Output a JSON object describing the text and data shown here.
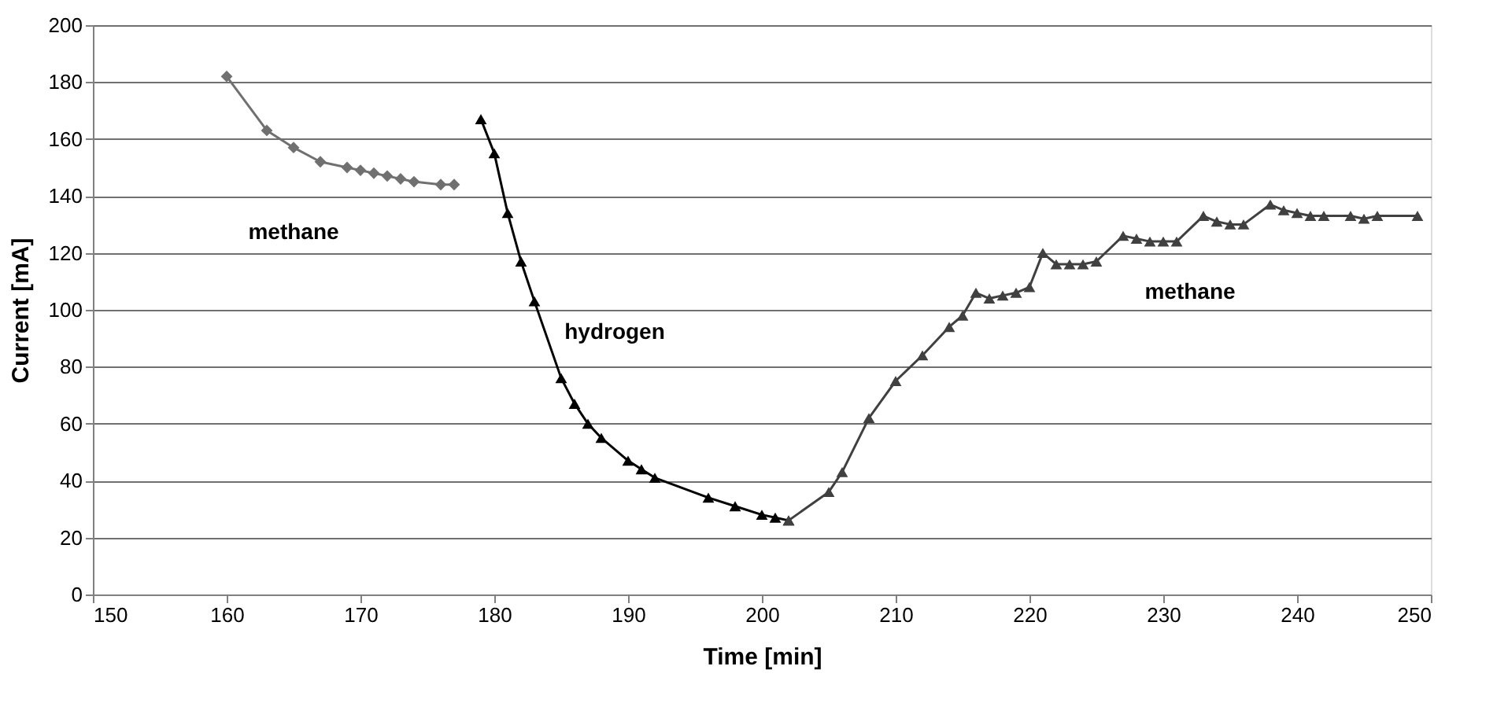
{
  "chart_data": {
    "type": "line",
    "xlabel": "Time [min]",
    "ylabel": "Current [mA]",
    "xlim": [
      150,
      250
    ],
    "xticks": [
      150,
      160,
      170,
      180,
      190,
      200,
      210,
      220,
      230,
      240,
      250
    ],
    "ylim": [
      0,
      200
    ],
    "yticks": [
      0,
      20,
      40,
      60,
      80,
      100,
      120,
      140,
      160,
      180,
      200
    ],
    "grid": "y",
    "line_style": "solid",
    "series": [
      {
        "color": "#707070",
        "marker": "diamond",
        "x": [
          160,
          163,
          165,
          167,
          169,
          170,
          171,
          172,
          173,
          174,
          176,
          177
        ],
        "values": [
          182,
          163,
          157,
          152,
          150,
          149,
          148,
          147,
          146,
          145,
          144,
          144
        ]
      },
      {
        "color": "#000000",
        "marker": "triangle",
        "x": [
          179,
          180,
          181,
          182,
          183,
          185,
          186,
          187,
          188,
          190,
          191,
          192,
          196,
          198,
          200,
          201,
          202
        ],
        "values": [
          167,
          155,
          134,
          117,
          103,
          76,
          67,
          60,
          55,
          47,
          44,
          41,
          34,
          31,
          28,
          27,
          26
        ]
      },
      {
        "color": "#404040",
        "marker": "triangle",
        "x": [
          202,
          205,
          206,
          208,
          210,
          212,
          214,
          215,
          216,
          217,
          218,
          219,
          220,
          221,
          222,
          223,
          224,
          225,
          227,
          228,
          229,
          230,
          231,
          233,
          234,
          235,
          236,
          238,
          239,
          240,
          241,
          242,
          244,
          245,
          246,
          249
        ],
        "values": [
          26,
          36,
          43,
          62,
          75,
          84,
          94,
          98,
          106,
          104,
          105,
          106,
          108,
          120,
          116,
          116,
          116,
          117,
          126,
          125,
          124,
          124,
          124,
          133,
          131,
          130,
          130,
          137,
          135,
          134,
          133,
          133,
          133,
          132,
          133,
          133
        ]
      }
    ],
    "annotations": [
      "methane",
      "hydrogen",
      "methane"
    ]
  }
}
